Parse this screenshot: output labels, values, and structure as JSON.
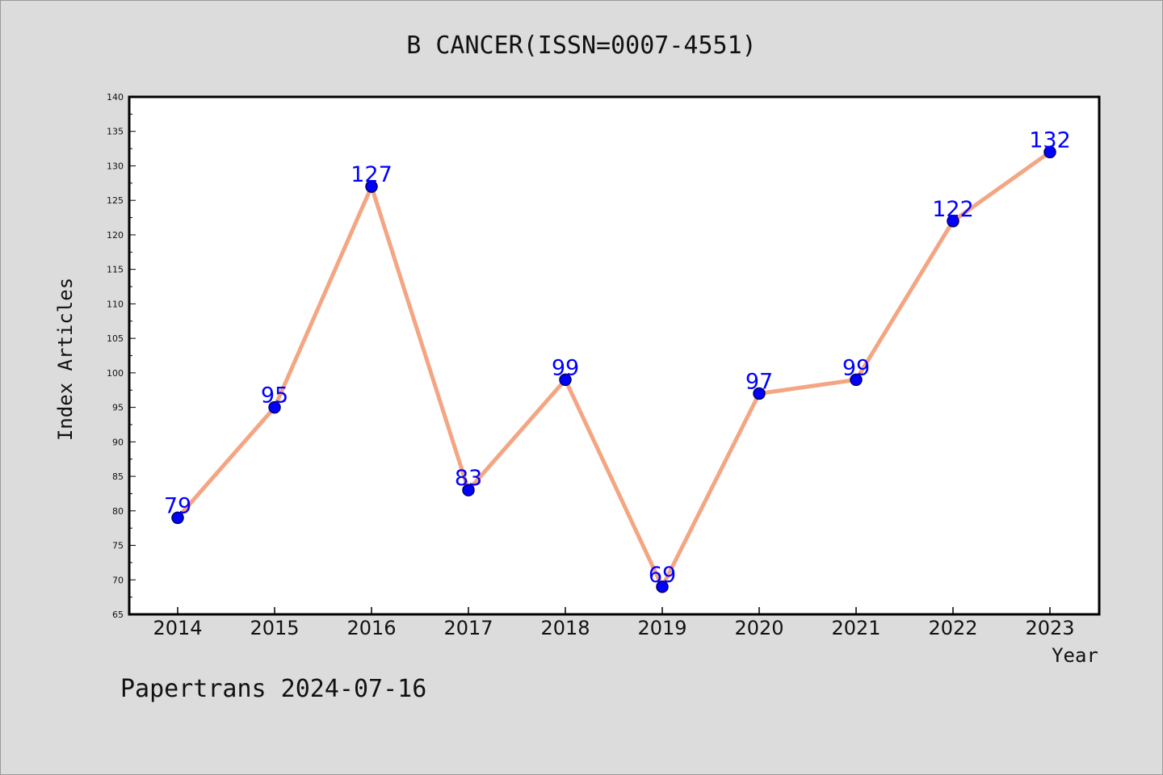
{
  "colors": {
    "page_background": "#dcdcdc",
    "plot_background": "#ffffff",
    "line": "#f4a582",
    "marker_fill": "#0000ff",
    "marker_edge": "#000066",
    "data_label": "#0000ff",
    "axis": "#000000"
  },
  "footer": "Papertrans 2024-07-16",
  "chart_data": {
    "type": "line",
    "title": "B CANCER(ISSN=0007-4551)",
    "xlabel": "Year",
    "ylabel": "Index Articles",
    "categories": [
      "2014",
      "2015",
      "2016",
      "2017",
      "2018",
      "2019",
      "2020",
      "2021",
      "2022",
      "2023"
    ],
    "series": [
      {
        "values": [
          79,
          95,
          127,
          83,
          99,
          69,
          97,
          99,
          122,
          132
        ]
      }
    ],
    "ylim": [
      65,
      140
    ],
    "yticks": [
      65,
      70,
      75,
      80,
      85,
      90,
      95,
      100,
      105,
      110,
      115,
      120,
      125,
      130,
      135,
      140
    ],
    "grid": false,
    "legend": "none",
    "data_labels": true
  }
}
